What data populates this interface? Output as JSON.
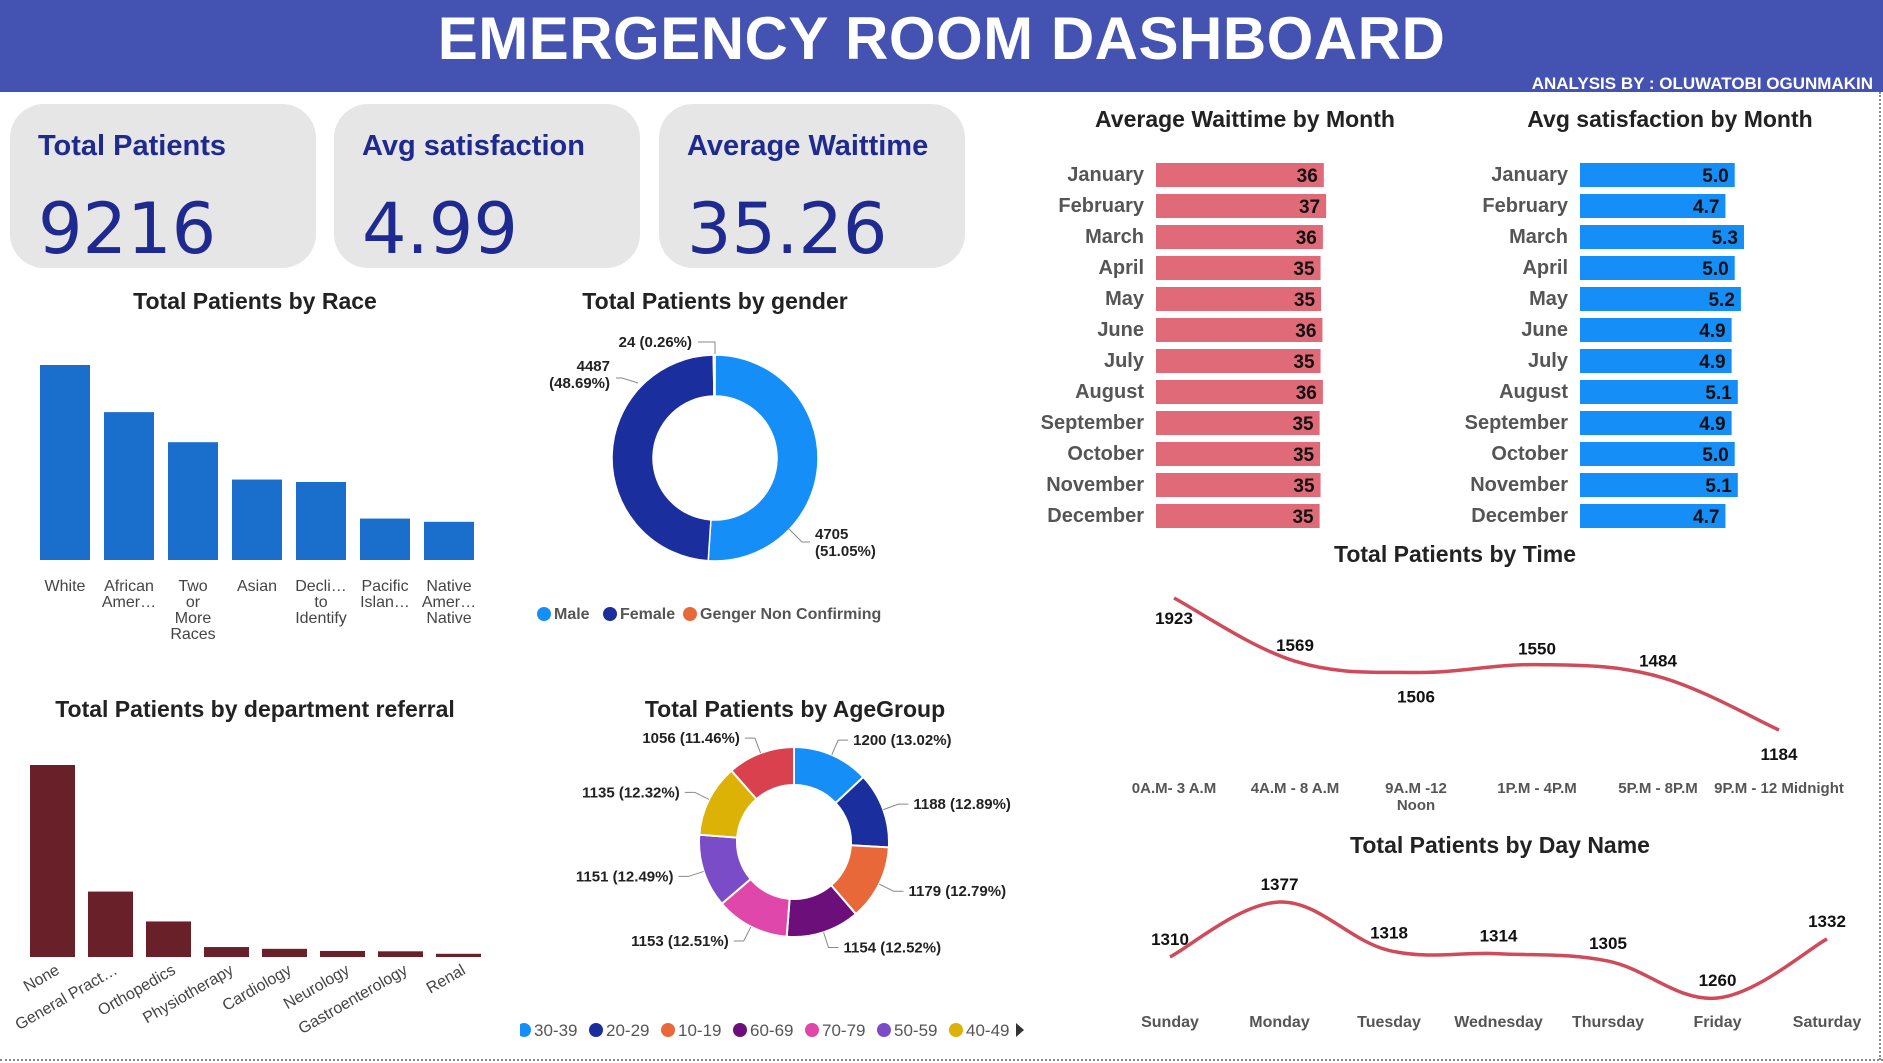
{
  "header": {
    "title": "EMERGENCY ROOM DASHBOARD",
    "analysis_by": "ANALYSIS BY : OLUWATOBI OGUNMAKIN",
    "background": "#4453b1"
  },
  "kpis": [
    {
      "label": "Total Patients",
      "value": "9216"
    },
    {
      "label": "Avg satisfaction",
      "value": "4.99"
    },
    {
      "label": "Average Waittime",
      "value": "35.26"
    }
  ],
  "chart_titles": {
    "race": "Total Patients by Race",
    "gender": "Total Patients by gender",
    "wait": "Average Waittime by Month",
    "satisfaction": "Avg satisfaction by Month",
    "time": "Total Patients by Time",
    "department": "Total Patients by department referral",
    "age": "Total Patients by AgeGroup",
    "day": "Total Patients by Day Name"
  },
  "colors": {
    "race_bar": "#1a6fcc",
    "wait_bar": "#e06a78",
    "satisfaction_bar": "#168ef8",
    "line": "#cf4b5a",
    "department_bar": "#6a2028",
    "male": "#168ef8",
    "female": "#1a2e9e",
    "nonconforming": "#e8683a"
  },
  "chart_data": [
    {
      "id": "race",
      "type": "bar",
      "categories": [
        "White",
        "African Amer…",
        "Two or More Races",
        "Asian",
        "Decli… to Identify",
        "Pacific Islan…",
        "Native Amer… Native"
      ],
      "values": [
        2400,
        1820,
        1450,
        990,
        960,
        510,
        470
      ]
    },
    {
      "id": "gender",
      "type": "pie",
      "legend": [
        "Male",
        "Female",
        "Genger Non Confirming"
      ],
      "slices": [
        {
          "name": "Male",
          "value": 4705,
          "label": "4705 (51.05%)",
          "color": "#168ef8"
        },
        {
          "name": "Female",
          "value": 4487,
          "label": "4487 (48.69%)",
          "color": "#1a2e9e"
        },
        {
          "name": "Genger Non Confirming",
          "value": 24,
          "label": "24 (0.26%)",
          "color": "#e8683a"
        }
      ]
    },
    {
      "id": "wait",
      "type": "bar",
      "orientation": "horizontal",
      "categories": [
        "January",
        "February",
        "March",
        "April",
        "May",
        "June",
        "July",
        "August",
        "September",
        "October",
        "November",
        "December"
      ],
      "values": [
        36,
        37,
        36,
        35,
        35,
        36,
        35,
        36,
        35,
        35,
        35,
        35
      ],
      "labels": [
        "36",
        "37",
        "36",
        "35",
        "35",
        "36",
        "35",
        "36",
        "35",
        "35",
        "35",
        "35"
      ],
      "bar_lengths": [
        36.1,
        36.6,
        35.9,
        35.4,
        35.5,
        35.8,
        35.4,
        35.9,
        35.2,
        35.3,
        35.4,
        35.2
      ]
    },
    {
      "id": "satisfaction",
      "type": "bar",
      "orientation": "horizontal",
      "categories": [
        "January",
        "February",
        "March",
        "April",
        "May",
        "June",
        "July",
        "August",
        "September",
        "October",
        "November",
        "December"
      ],
      "values": [
        5.0,
        4.7,
        5.3,
        5.0,
        5.2,
        4.9,
        4.9,
        5.1,
        4.9,
        5.0,
        5.1,
        4.7
      ],
      "labels": [
        "5.0",
        "4.7",
        "5.3",
        "5.0",
        "5.2",
        "4.9",
        "4.9",
        "5.1",
        "4.9",
        "5.0",
        "5.1",
        "4.7"
      ]
    },
    {
      "id": "time",
      "type": "line",
      "categories": [
        "0A.M- 3 A.M",
        "4A.M - 8 A.M",
        "9A.M -12 Noon",
        "1P.M - 4P.M",
        "5P.M - 8P.M",
        "9P.M - 12 Midnight"
      ],
      "values": [
        1923,
        1569,
        1506,
        1550,
        1484,
        1184
      ]
    },
    {
      "id": "department",
      "type": "bar",
      "categories": [
        "None",
        "General Pract…",
        "Orthopedics",
        "Physiotherapy",
        "Cardiology",
        "Neurology",
        "Gastroenterology",
        "Renal"
      ],
      "values": [
        5400,
        1840,
        1000,
        280,
        230,
        170,
        160,
        90
      ]
    },
    {
      "id": "age",
      "type": "pie",
      "legend": [
        "30-39",
        "20-29",
        "10-19",
        "60-69",
        "70-79",
        "50-59",
        "40-49"
      ],
      "slices": [
        {
          "name": "30-39",
          "value": 1200,
          "label": "1200 (13.02%)",
          "color": "#168ef8"
        },
        {
          "name": "20-29",
          "value": 1188,
          "label": "1188 (12.89%)",
          "color": "#1a2e9e"
        },
        {
          "name": "10-19",
          "value": 1179,
          "label": "1179 (12.79%)",
          "color": "#e8683a"
        },
        {
          "name": "60-69",
          "value": 1154,
          "label": "1154 (12.52%)",
          "color": "#6c0f7a"
        },
        {
          "name": "70-79",
          "value": 1153,
          "label": "1153 (12.51%)",
          "color": "#e047aa"
        },
        {
          "name": "50-59",
          "value": 1151,
          "label": "1151 (12.49%)",
          "color": "#7b4cc7"
        },
        {
          "name": "40-49",
          "value": 1135,
          "label": "1135 (12.32%)",
          "color": "#dbb205"
        },
        {
          "name": "",
          "value": 1056,
          "label": "1056 (11.46%)",
          "color": "#d9414f"
        }
      ]
    },
    {
      "id": "day",
      "type": "line",
      "categories": [
        "Sunday",
        "Monday",
        "Tuesday",
        "Wednesday",
        "Thursday",
        "Friday",
        "Saturday"
      ],
      "values": [
        1310,
        1377,
        1318,
        1314,
        1305,
        1260,
        1332
      ]
    }
  ]
}
